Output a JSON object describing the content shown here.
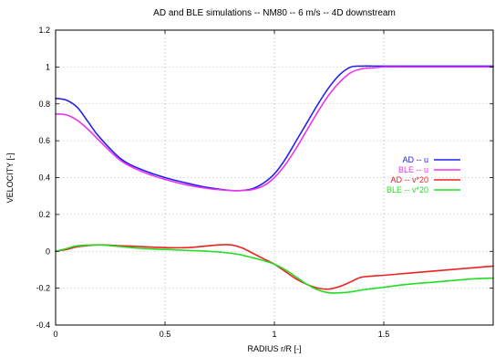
{
  "chart_data": {
    "type": "line",
    "title": "AD and BLE simulations -- NM80 -- 6 m/s -- 4D downstream",
    "xlabel": "RADIUS r/R [-]",
    "ylabel": "VELOCITY [-]",
    "xlim": [
      0,
      2
    ],
    "ylim": [
      -0.4,
      1.2
    ],
    "xticks": [
      0,
      0.5,
      1,
      1.5
    ],
    "xtick_labels": [
      "0",
      "0.5",
      "1",
      "1.5"
    ],
    "yticks": [
      -0.4,
      -0.2,
      0,
      0.2,
      0.4,
      0.6,
      0.8,
      1,
      1.2
    ],
    "ytick_labels": [
      "-0.4",
      "-0.2",
      "0",
      "0.2",
      "0.4",
      "0.6",
      "0.8",
      "1",
      "1.2"
    ],
    "grid": true,
    "legend_position": "right",
    "series": [
      {
        "name": "AD -- u",
        "color": "#2222ee",
        "x": [
          0,
          0.05,
          0.1,
          0.15,
          0.2,
          0.3,
          0.4,
          0.5,
          0.6,
          0.7,
          0.8,
          0.85,
          0.9,
          0.95,
          1.0,
          1.05,
          1.1,
          1.15,
          1.2,
          1.25,
          1.3,
          1.35,
          1.4,
          1.45,
          1.5,
          1.6,
          1.7,
          1.8,
          1.9,
          2.0
        ],
        "y": [
          0.83,
          0.82,
          0.78,
          0.7,
          0.62,
          0.5,
          0.44,
          0.4,
          0.37,
          0.345,
          0.33,
          0.33,
          0.34,
          0.37,
          0.42,
          0.5,
          0.6,
          0.7,
          0.8,
          0.89,
          0.96,
          1.0,
          1.005,
          1.005,
          1.005,
          1.005,
          1.005,
          1.005,
          1.005,
          1.005
        ]
      },
      {
        "name": "BLE -- u",
        "color": "#ee33ee",
        "x": [
          0,
          0.05,
          0.1,
          0.15,
          0.2,
          0.3,
          0.4,
          0.5,
          0.6,
          0.7,
          0.8,
          0.85,
          0.9,
          0.95,
          1.0,
          1.05,
          1.1,
          1.15,
          1.2,
          1.25,
          1.3,
          1.35,
          1.4,
          1.45,
          1.5,
          1.6,
          1.7,
          1.8,
          1.9,
          2.0
        ],
        "y": [
          0.745,
          0.74,
          0.71,
          0.66,
          0.6,
          0.49,
          0.43,
          0.39,
          0.36,
          0.34,
          0.33,
          0.33,
          0.335,
          0.355,
          0.4,
          0.47,
          0.56,
          0.66,
          0.76,
          0.85,
          0.92,
          0.97,
          0.99,
          0.995,
          1.0,
          1.0,
          1.0,
          1.0,
          1.0,
          1.0
        ]
      },
      {
        "name": "AD -- v*20",
        "color": "#ee2222",
        "x": [
          0,
          0.05,
          0.1,
          0.2,
          0.3,
          0.4,
          0.5,
          0.6,
          0.7,
          0.75,
          0.8,
          0.85,
          0.9,
          0.95,
          1.0,
          1.05,
          1.1,
          1.15,
          1.2,
          1.25,
          1.3,
          1.35,
          1.4,
          1.5,
          1.6,
          1.7,
          1.8,
          1.9,
          2.0
        ],
        "y": [
          0,
          0.01,
          0.025,
          0.035,
          0.03,
          0.025,
          0.02,
          0.02,
          0.03,
          0.035,
          0.035,
          0.02,
          -0.01,
          -0.04,
          -0.07,
          -0.11,
          -0.15,
          -0.18,
          -0.2,
          -0.205,
          -0.19,
          -0.165,
          -0.14,
          -0.13,
          -0.12,
          -0.11,
          -0.1,
          -0.09,
          -0.08
        ]
      },
      {
        "name": "BLE -- v*20",
        "color": "#22dd22",
        "x": [
          0,
          0.05,
          0.1,
          0.2,
          0.3,
          0.4,
          0.5,
          0.6,
          0.7,
          0.8,
          0.85,
          0.9,
          0.95,
          1.0,
          1.05,
          1.1,
          1.15,
          1.2,
          1.25,
          1.3,
          1.35,
          1.4,
          1.5,
          1.6,
          1.7,
          1.8,
          1.9,
          2.0
        ],
        "y": [
          0,
          0.015,
          0.03,
          0.035,
          0.025,
          0.015,
          0.01,
          0.005,
          0.0,
          -0.01,
          -0.02,
          -0.035,
          -0.05,
          -0.07,
          -0.1,
          -0.14,
          -0.18,
          -0.21,
          -0.225,
          -0.225,
          -0.22,
          -0.21,
          -0.195,
          -0.18,
          -0.17,
          -0.16,
          -0.15,
          -0.145
        ]
      }
    ]
  }
}
